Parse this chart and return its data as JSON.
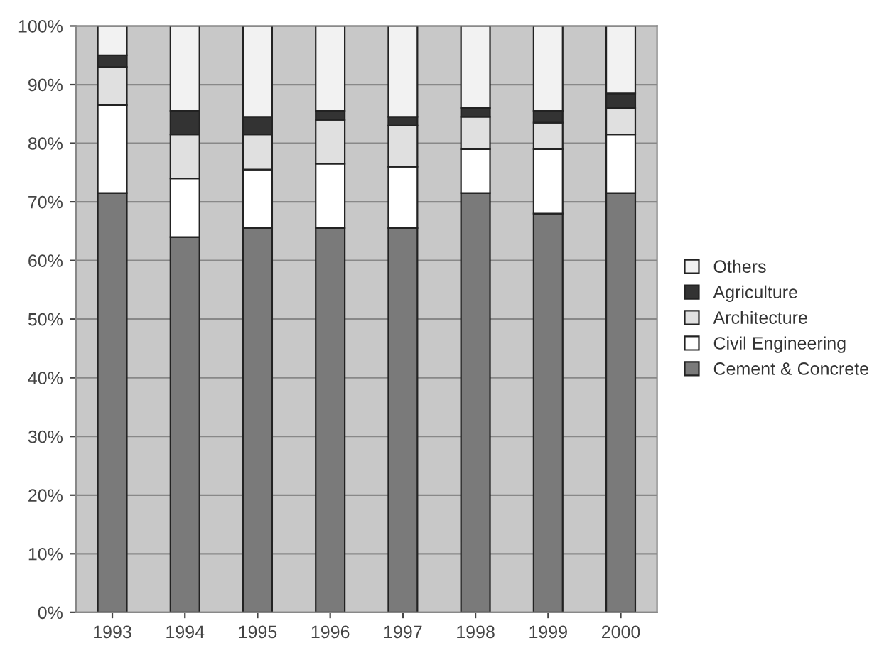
{
  "chart_data": {
    "type": "bar",
    "stacked": true,
    "categories": [
      "1993",
      "1994",
      "1995",
      "1996",
      "1997",
      "1998",
      "1999",
      "2000"
    ],
    "series": [
      {
        "name": "Cement & Concrete",
        "color": "#7a7a7a",
        "values": [
          71.5,
          64,
          65.5,
          65.5,
          65.5,
          71.5,
          68,
          71.5
        ]
      },
      {
        "name": "Civil Engineering",
        "color": "#ffffff",
        "values": [
          15,
          10,
          10,
          11,
          10.5,
          7.5,
          11,
          10
        ]
      },
      {
        "name": "Architecture",
        "color": "#e0e0e0",
        "values": [
          6.5,
          7.5,
          6,
          7.5,
          7,
          5.5,
          4.5,
          4.5
        ]
      },
      {
        "name": "Agriculture",
        "color": "#333333",
        "values": [
          2,
          4,
          3,
          1.5,
          1.5,
          1.5,
          2,
          2.5
        ]
      },
      {
        "name": "Others",
        "color": "#f2f2f2",
        "values": [
          5,
          14.5,
          15.5,
          14.5,
          15.5,
          14,
          14.5,
          11.5
        ]
      }
    ],
    "ylim": [
      0,
      100
    ],
    "yticks": [
      {
        "value": 0,
        "label": "0%"
      },
      {
        "value": 10,
        "label": "10%"
      },
      {
        "value": 20,
        "label": "20%"
      },
      {
        "value": 30,
        "label": "30%"
      },
      {
        "value": 40,
        "label": "40%"
      },
      {
        "value": 50,
        "label": "50%"
      },
      {
        "value": 60,
        "label": "60%"
      },
      {
        "value": 70,
        "label": "70%"
      },
      {
        "value": 80,
        "label": "80%"
      },
      {
        "value": 90,
        "label": "90%"
      },
      {
        "value": 100,
        "label": "100%"
      }
    ],
    "grid": "y",
    "legend": "right"
  }
}
